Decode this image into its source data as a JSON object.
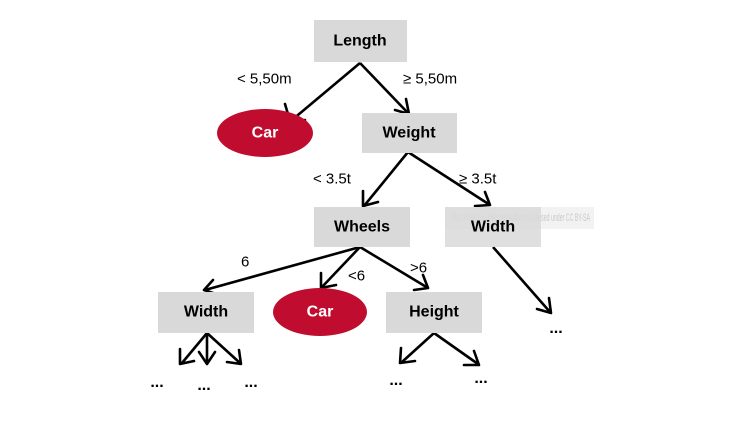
{
  "colors": {
    "attribute_box": "#d9d9d9",
    "leaf_ellipse": "#c00d2f",
    "leaf_text": "#ffffff",
    "attribute_text": "#000000",
    "ghost_box": "#f2f2f2",
    "ghost_text": "#c9c9c9"
  },
  "nodes": {
    "length": "Length",
    "car_left": "Car",
    "weight": "Weight",
    "wheels": "Wheels",
    "width_right": "Width",
    "width_left": "Width",
    "car_middle": "Car",
    "height": "Height"
  },
  "edge_labels": {
    "length_lt": "< 5,50m",
    "length_ge": "≥ 5,50m",
    "weight_lt": "< 3.5t",
    "weight_ge": "≥ 3.5t",
    "wheels_eq": "6",
    "wheels_lt": "<6",
    "wheels_gt": ">6"
  },
  "continuation": "...",
  "overlay_text": "This Photo by Unknown Author is licensed under CC BY-SA"
}
